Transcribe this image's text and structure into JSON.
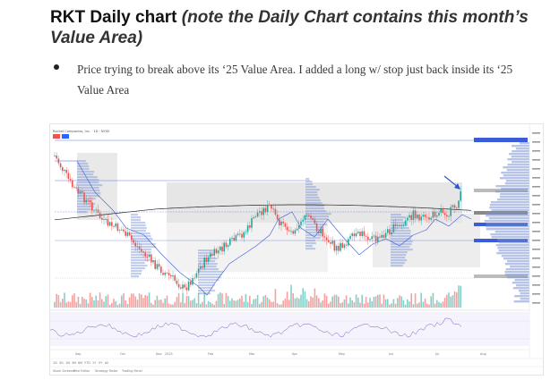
{
  "post": {
    "title_lead": "RKT Daily chart",
    "title_note": "(note the Daily Chart contains this month’s Value Area)",
    "bullets": [
      "Price trying to break above its ‘25 Value Area. I added a long w/ stop just back inside its ‘25 Value Area"
    ]
  },
  "chart": {
    "symbol_line": "Rocket Companies, Inc. · 1D · NYSE",
    "x_ticks": [
      "Sep",
      "Oct",
      "Nov",
      "2025",
      "Feb",
      "Mar",
      "Apr",
      "May",
      "Jun",
      "Jul",
      "Aug"
    ],
    "bottom_toolbar": [
      "1D",
      "5D",
      "1M",
      "3M",
      "6M",
      "YTD",
      "1Y",
      "5Y",
      "All"
    ],
    "footer_tabs": [
      "Stock Screener",
      "Pine Editor",
      "Strategy Tester",
      "Trading Panel"
    ],
    "colors": {
      "up": "#26a69a",
      "down": "#ef5350",
      "ma_black": "#222222",
      "ma_blue": "#3b5bdb",
      "value_area": "#d9d9d9",
      "profile": "#7b93d6",
      "arrow": "#2f55c9"
    }
  }
}
